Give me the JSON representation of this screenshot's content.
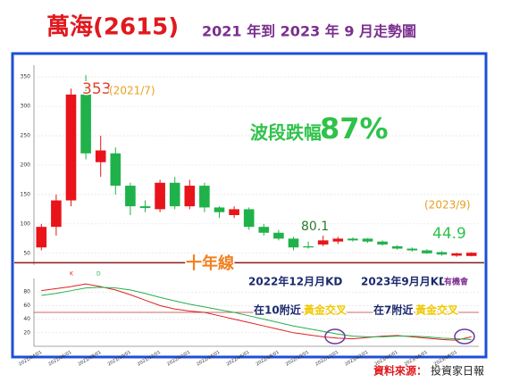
{
  "chart_data": {
    "type": "candlestick",
    "title": "萬海(2615)",
    "subtitle": "2021 年到 2023 年 9 月走勢圖",
    "categories": [
      "2021/04/01",
      null,
      "2021/06/01",
      null,
      "2021/08/01",
      null,
      "2021/10/01",
      null,
      "2021/12/01",
      null,
      "2022/02/01",
      null,
      "2022/04/01",
      null,
      "2022/06/01",
      null,
      "2022/08/01",
      null,
      "2022/10/01",
      null,
      "2022/12/01",
      null,
      "2023/02/01",
      null,
      "2023/04/01",
      null,
      "2023/06/01",
      null,
      "2023/08/01",
      null
    ],
    "open": [
      60,
      95,
      140,
      320,
      205,
      220,
      165,
      130,
      125,
      170,
      130,
      165,
      128,
      115,
      125,
      95,
      85,
      75,
      62,
      65,
      70,
      75,
      75,
      70,
      62,
      58,
      55,
      52,
      46,
      45.5
    ],
    "high": [
      100,
      150,
      330,
      353,
      250,
      230,
      170,
      140,
      175,
      180,
      175,
      170,
      130,
      130,
      128,
      100,
      90,
      78,
      70,
      80.1,
      78,
      77,
      76,
      72,
      64,
      60,
      57,
      54,
      51,
      51.8
    ],
    "low": [
      55,
      80,
      130,
      210,
      180,
      150,
      115,
      120,
      120,
      125,
      125,
      120,
      110,
      110,
      90,
      80,
      72,
      55,
      58,
      62,
      66,
      70,
      68,
      63,
      56,
      53,
      49,
      46,
      44,
      44.9
    ],
    "close": [
      95,
      140,
      320,
      220,
      225,
      165,
      130,
      127,
      170,
      130,
      165,
      128,
      120,
      125,
      95,
      85,
      75,
      60,
      60,
      72,
      75,
      72,
      70,
      65,
      58,
      55,
      50,
      48,
      50,
      51
    ],
    "up_color": "#e8141a",
    "down_color": "#1fb24a",
    "ylim": [
      30,
      370
    ],
    "yticks": [
      50,
      100,
      150,
      200,
      250,
      300,
      350
    ],
    "grid": true,
    "ten_year_line": 34,
    "ten_year_color": "#8b1a1a",
    "kd": {
      "ylim": [
        0,
        100
      ],
      "yticks": [
        20,
        40,
        60,
        80
      ],
      "mid_line": 50,
      "series": [
        {
          "name": "K",
          "color": "#e0201f",
          "values": [
            82,
            85,
            88,
            92,
            88,
            83,
            76,
            68,
            60,
            55,
            52,
            50,
            45,
            40,
            35,
            30,
            25,
            20,
            17,
            14,
            12,
            11,
            13,
            15,
            16,
            14,
            12,
            10,
            9,
            14
          ]
        },
        {
          "name": "D",
          "color": "#22b14c",
          "values": [
            75,
            78,
            82,
            86,
            87,
            86,
            83,
            78,
            72,
            67,
            62,
            58,
            54,
            50,
            45,
            40,
            35,
            30,
            26,
            22,
            18,
            15,
            14,
            14,
            15,
            15,
            14,
            12,
            11,
            10
          ]
        }
      ]
    },
    "annotations": {
      "peak": "353",
      "peak_date": "(2021/7)",
      "drop_text": "波段跌幅",
      "drop_pct": "87%",
      "mid_high": "80.1",
      "last_date": "(2023/9)",
      "last_low": "44.9",
      "ten_year": "十年線",
      "kd_note1_a": "2022年12月月KD",
      "kd_note1_b": "在10附近",
      "kd_note1_c": "黃金交叉",
      "kd_note2_a": "2023年9月月KD",
      "kd_note2_b": "有機會",
      "kd_note2_c": "在7附近",
      "kd_note2_d": "黃金交叉"
    },
    "source_label": "資料來源：",
    "source": "投資家日報"
  }
}
